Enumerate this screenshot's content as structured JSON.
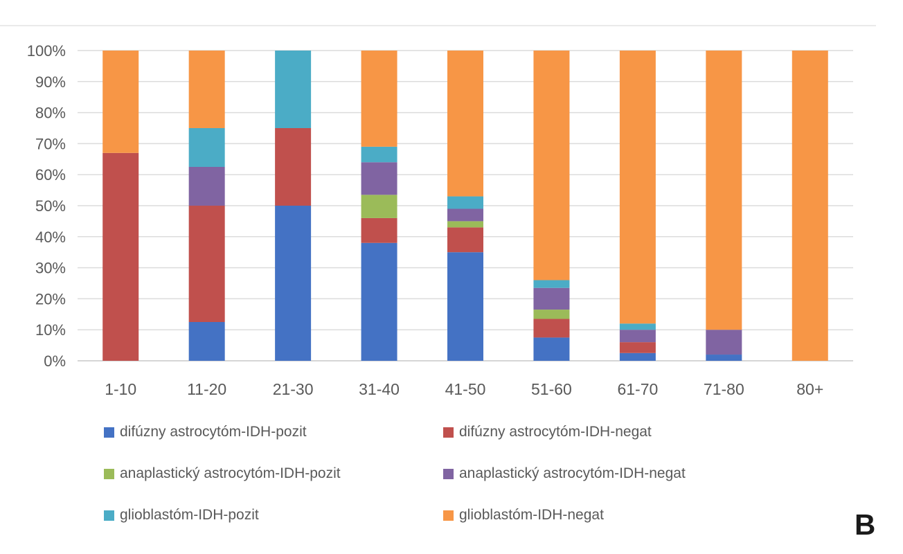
{
  "chart_data": {
    "type": "bar",
    "stacked": true,
    "normalized": true,
    "categories": [
      "1-10",
      "11-20",
      "21-30",
      "31-40",
      "41-50",
      "51-60",
      "61-70",
      "71-80",
      "80+"
    ],
    "y_ticks": [
      "0%",
      "10%",
      "20%",
      "30%",
      "40%",
      "50%",
      "60%",
      "70%",
      "80%",
      "90%",
      "100%"
    ],
    "ylim": [
      0,
      100
    ],
    "grid": true,
    "legend_position": "bottom",
    "series": [
      {
        "name": "difúzny astrocytóm-IDH-pozit",
        "color": "#4472C4",
        "values": [
          0,
          12.5,
          50,
          38,
          35,
          7.5,
          2.5,
          2,
          0
        ]
      },
      {
        "name": "difúzny astrocytóm-IDH-negat",
        "color": "#C0504D",
        "values": [
          67,
          37.5,
          25,
          8,
          8,
          6,
          3.5,
          0,
          0
        ]
      },
      {
        "name": "anaplastický astrocytóm-IDH-pozit",
        "color": "#9BBB59",
        "values": [
          0,
          0,
          0,
          7.5,
          2,
          3,
          0,
          0,
          0
        ]
      },
      {
        "name": "anaplastický astrocytóm-IDH-negat",
        "color": "#8064A2",
        "values": [
          0,
          12.5,
          0,
          10.5,
          4,
          7,
          4,
          8,
          0
        ]
      },
      {
        "name": "glioblastóm-IDH-pozit",
        "color": "#4BACC6",
        "values": [
          0,
          12.5,
          25,
          5,
          4,
          2.5,
          2,
          0,
          0
        ]
      },
      {
        "name": "glioblastóm-IDH-negat",
        "color": "#F79646",
        "values": [
          33,
          25,
          0,
          31,
          47,
          74,
          88,
          90,
          100
        ]
      }
    ],
    "panel_label": "B"
  }
}
